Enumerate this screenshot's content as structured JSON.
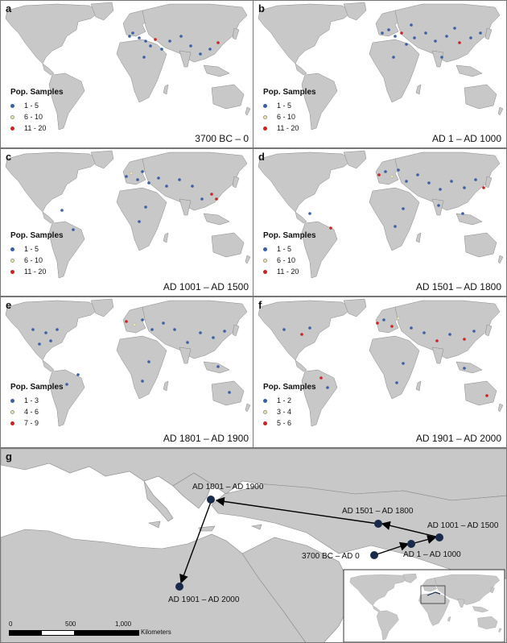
{
  "panels": [
    {
      "label": "a",
      "period": "3700 BC – 0",
      "legend_title": "Pop. Samples",
      "legend": [
        "1 - 5",
        "6 - 10",
        "11 - 20"
      ]
    },
    {
      "label": "b",
      "period": "AD 1 – AD 1000",
      "legend_title": "Pop. Samples",
      "legend": [
        "1 - 5",
        "6 - 10",
        "11 - 20"
      ]
    },
    {
      "label": "c",
      "period": "AD 1001 – AD 1500",
      "legend_title": "Pop. Samples",
      "legend": [
        "1 - 5",
        "6 - 10",
        "11 - 20"
      ]
    },
    {
      "label": "d",
      "period": "AD 1501 – AD 1800",
      "legend_title": "Pop. Samples",
      "legend": [
        "1 - 5",
        "6 - 10",
        "11 - 20"
      ]
    },
    {
      "label": "e",
      "period": "AD 1801 – AD 1900",
      "legend_title": "Pop. Samples",
      "legend": [
        "1 - 3",
        "4 - 6",
        "7 - 9"
      ]
    },
    {
      "label": "f",
      "period": "AD 1901 – AD 2000",
      "legend_title": "Pop. Samples",
      "legend": [
        "1 - 2",
        "3 - 4",
        "5 - 6"
      ]
    }
  ],
  "legend_colors": [
    "#3b5fa3",
    "#f3e9a6",
    "#cc2222"
  ],
  "route": {
    "label": "g",
    "points": [
      "3700 BC – AD 0",
      "AD 1 – AD 1000",
      "AD 1001 – AD 1500",
      "AD 1501 – AD 1800",
      "AD 1801 – AD 1900",
      "AD 1901 – AD 2000"
    ]
  },
  "scale": {
    "ticks": [
      "0",
      "500",
      "1,000"
    ],
    "unit": "Kilometers"
  }
}
